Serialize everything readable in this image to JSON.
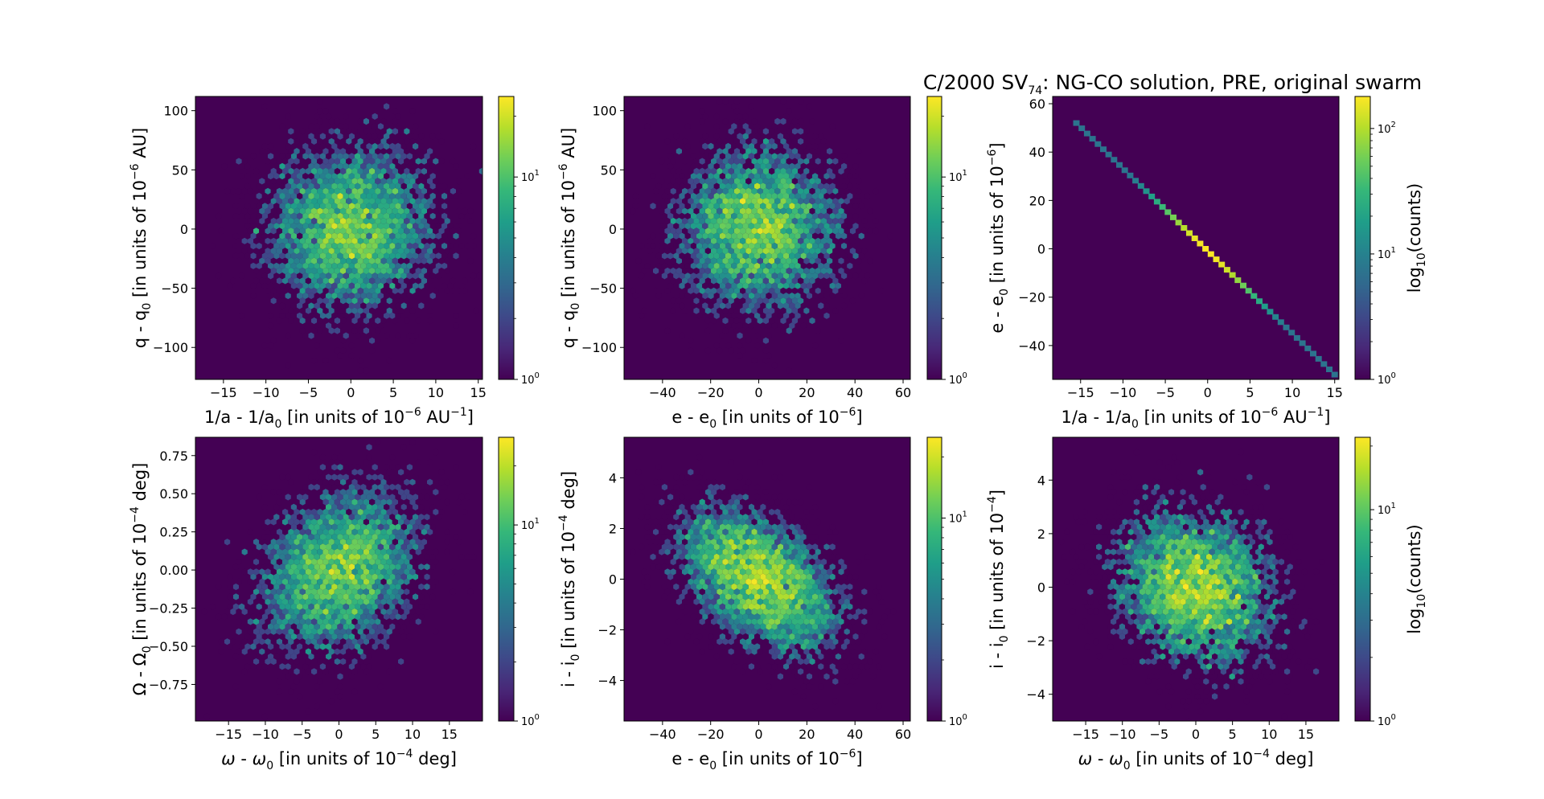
{
  "figure": {
    "title": {
      "prefix": "C/2000 SV",
      "sub": "74",
      "suffix": ": NG-CO solution, PRE, original swarm"
    }
  },
  "colors": {
    "viridis": [
      "#440154",
      "#482878",
      "#3e4989",
      "#31688e",
      "#26828e",
      "#1f9e89",
      "#35b779",
      "#6ece58",
      "#b5de2b",
      "#fde725"
    ],
    "background": "#440154"
  },
  "chart_data": [
    {
      "id": "p1",
      "type": "heatmap",
      "kind": "hexbin",
      "x": {
        "range": [
          -18.3,
          15.5
        ],
        "ticks": [
          -15,
          -10,
          -5,
          0,
          5,
          10,
          15
        ],
        "tick_labels": [
          "−15",
          "−10",
          "−5",
          "0",
          "5",
          "10",
          "15"
        ],
        "label": {
          "parts": [
            [
              "t",
              "1/a - 1/a"
            ],
            [
              "sub",
              "0"
            ],
            [
              "t",
              " [in units of 10"
            ],
            [
              "sup",
              "−6"
            ],
            [
              "t",
              " AU"
            ],
            [
              "sup",
              "−1"
            ],
            [
              "t",
              "]"
            ]
          ]
        }
      },
      "y": {
        "range": [
          -127,
          112
        ],
        "ticks": [
          100,
          50,
          0,
          -50,
          -100
        ],
        "tick_labels": [
          "100",
          "50",
          "0",
          "−50",
          "−100"
        ],
        "label": {
          "parts": [
            [
              "t",
              "q - q"
            ],
            [
              "sub",
              "0"
            ],
            [
              "t",
              " [in units of 10"
            ],
            [
              "sup",
              "−6"
            ],
            [
              "t",
              " AU]"
            ]
          ]
        }
      },
      "density": {
        "shape": "gaussian-blob",
        "mean": [
          0,
          0
        ],
        "sigma": [
          5,
          35
        ],
        "rho": 0,
        "n_points": 5000
      },
      "colorbar": {
        "scale": "log",
        "range": [
          1,
          25
        ],
        "ticks": [
          1,
          10
        ],
        "tick_labels": [
          [
            "10",
            "0"
          ],
          [
            "10",
            "1"
          ]
        ],
        "label": null
      }
    },
    {
      "id": "p2",
      "type": "heatmap",
      "kind": "hexbin",
      "x": {
        "range": [
          -56,
          63
        ],
        "ticks": [
          -40,
          -20,
          0,
          20,
          40,
          60
        ],
        "tick_labels": [
          "−40",
          "−20",
          "0",
          "20",
          "40",
          "60"
        ],
        "label": {
          "parts": [
            [
              "t",
              "e - e"
            ],
            [
              "sub",
              "0"
            ],
            [
              "t",
              " [in units of 10"
            ],
            [
              "sup",
              "−6"
            ],
            [
              "t",
              "]"
            ]
          ]
        }
      },
      "y": {
        "range": [
          -127,
          112
        ],
        "ticks": [
          100,
          50,
          0,
          -50,
          -100
        ],
        "tick_labels": [
          "100",
          "50",
          "0",
          "−50",
          "−100"
        ],
        "label": {
          "parts": [
            [
              "t",
              "q - q"
            ],
            [
              "sub",
              "0"
            ],
            [
              "t",
              " [in units of 10"
            ],
            [
              "sup",
              "−6"
            ],
            [
              "t",
              " AU]"
            ]
          ]
        }
      },
      "density": {
        "shape": "gaussian-blob",
        "mean": [
          0,
          0
        ],
        "sigma": [
          17,
          35
        ],
        "rho": 0,
        "n_points": 5000
      },
      "colorbar": {
        "scale": "log",
        "range": [
          1,
          25
        ],
        "ticks": [
          1,
          10
        ],
        "tick_labels": [
          [
            "10",
            "0"
          ],
          [
            "10",
            "1"
          ]
        ],
        "label": null
      }
    },
    {
      "id": "p3",
      "type": "heatmap",
      "kind": "hexbin",
      "x": {
        "range": [
          -18.3,
          15.5
        ],
        "ticks": [
          -15,
          -10,
          -5,
          0,
          5,
          10,
          15
        ],
        "tick_labels": [
          "−15",
          "−10",
          "−5",
          "0",
          "5",
          "10",
          "15"
        ],
        "label": {
          "parts": [
            [
              "t",
              "1/a - 1/a"
            ],
            [
              "sub",
              "0"
            ],
            [
              "t",
              " [in units of 10"
            ],
            [
              "sup",
              "−6"
            ],
            [
              "t",
              " AU"
            ],
            [
              "sup",
              "−1"
            ],
            [
              "t",
              "]"
            ]
          ]
        }
      },
      "y": {
        "range": [
          -54,
          63
        ],
        "ticks": [
          60,
          40,
          20,
          0,
          -20,
          -40
        ],
        "tick_labels": [
          "60",
          "40",
          "20",
          "0",
          "−20",
          "−40"
        ],
        "label": {
          "parts": [
            [
              "t",
              "e - e"
            ],
            [
              "sub",
              "0"
            ],
            [
              "t",
              " [in units of 10"
            ],
            [
              "sup",
              "−6"
            ],
            [
              "t",
              "]"
            ]
          ]
        }
      },
      "density": {
        "shape": "linear-ridge",
        "x_range": [
          -15.5,
          15
        ],
        "y_at_x": [
          [
            -15.5,
            52
          ],
          [
            15,
            -52
          ]
        ],
        "sigma_along": 5
      },
      "colorbar": {
        "scale": "log",
        "range": [
          1,
          180
        ],
        "ticks": [
          1,
          10,
          100
        ],
        "tick_labels": [
          [
            "10",
            "0"
          ],
          [
            "10",
            "1"
          ],
          [
            "10",
            "2"
          ]
        ],
        "label": {
          "parts": [
            [
              "t",
              "log"
            ],
            [
              "sub",
              "10"
            ],
            [
              "t",
              "(counts)"
            ]
          ]
        }
      }
    },
    {
      "id": "p4",
      "type": "heatmap",
      "kind": "hexbin",
      "x": {
        "range": [
          -19.5,
          19.5
        ],
        "ticks": [
          -15,
          -10,
          -5,
          0,
          5,
          10,
          15
        ],
        "tick_labels": [
          "−15",
          "−10",
          "−5",
          "0",
          "5",
          "10",
          "15"
        ],
        "label": {
          "parts": [
            [
              "ti",
              "ω"
            ],
            [
              "t",
              " - "
            ],
            [
              "ti",
              "ω"
            ],
            [
              "sub",
              "0"
            ],
            [
              "t",
              " [in units of 10"
            ],
            [
              "sup",
              "−4"
            ],
            [
              "t",
              " deg]"
            ]
          ]
        }
      },
      "y": {
        "range": [
          -0.99,
          0.87
        ],
        "ticks": [
          0.75,
          0.5,
          0.25,
          0,
          -0.25,
          -0.5,
          -0.75
        ],
        "tick_labels": [
          "0.75",
          "0.50",
          "0.25",
          "0.00",
          "−0.25",
          "−0.50",
          "−0.75"
        ],
        "label": {
          "parts": [
            [
              "t",
              "Ω - Ω"
            ],
            [
              "sub",
              "0"
            ],
            [
              "t",
              " [in units of 10"
            ],
            [
              "sup",
              "−4"
            ],
            [
              "t",
              " deg]"
            ]
          ]
        }
      },
      "density": {
        "shape": "gaussian-blob",
        "mean": [
          0,
          0
        ],
        "sigma": [
          5.5,
          0.27
        ],
        "rho": 0.3,
        "n_points": 5000
      },
      "colorbar": {
        "scale": "log",
        "range": [
          1,
          28
        ],
        "ticks": [
          1,
          10
        ],
        "tick_labels": [
          [
            "10",
            "0"
          ],
          [
            "10",
            "1"
          ]
        ],
        "label": null
      }
    },
    {
      "id": "p5",
      "type": "heatmap",
      "kind": "hexbin",
      "x": {
        "range": [
          -56,
          63
        ],
        "ticks": [
          -40,
          -20,
          0,
          20,
          40,
          60
        ],
        "tick_labels": [
          "−40",
          "−20",
          "0",
          "20",
          "40",
          "60"
        ],
        "label": {
          "parts": [
            [
              "t",
              "e - e"
            ],
            [
              "sub",
              "0"
            ],
            [
              "t",
              " [in units of 10"
            ],
            [
              "sup",
              "−6"
            ],
            [
              "t",
              "]"
            ]
          ]
        }
      },
      "y": {
        "range": [
          -5.6,
          5.6
        ],
        "ticks": [
          4,
          2,
          0,
          -2,
          -4
        ],
        "tick_labels": [
          "4",
          "2",
          "0",
          "−2",
          "−4"
        ],
        "label": {
          "parts": [
            [
              "t",
              "i - i"
            ],
            [
              "sub",
              "0"
            ],
            [
              "t",
              " [in units of 10"
            ],
            [
              "sup",
              "−4"
            ],
            [
              "t",
              " deg]"
            ]
          ]
        }
      },
      "density": {
        "shape": "gaussian-blob",
        "mean": [
          0,
          0
        ],
        "sigma": [
          17,
          1.45
        ],
        "rho": -0.45,
        "n_points": 5000
      },
      "colorbar": {
        "scale": "log",
        "range": [
          1,
          25
        ],
        "ticks": [
          1,
          10
        ],
        "tick_labels": [
          [
            "10",
            "0"
          ],
          [
            "10",
            "1"
          ]
        ],
        "label": null
      }
    },
    {
      "id": "p6",
      "type": "heatmap",
      "kind": "hexbin",
      "x": {
        "range": [
          -19.5,
          19.5
        ],
        "ticks": [
          -15,
          -10,
          -5,
          0,
          5,
          10,
          15
        ],
        "tick_labels": [
          "−15",
          "−10",
          "−5",
          "0",
          "5",
          "10",
          "15"
        ],
        "label": {
          "parts": [
            [
              "ti",
              "ω"
            ],
            [
              "t",
              " - "
            ],
            [
              "ti",
              "ω"
            ],
            [
              "sub",
              "0"
            ],
            [
              "t",
              " [in units of 10"
            ],
            [
              "sup",
              "−4"
            ],
            [
              "t",
              " deg]"
            ]
          ]
        }
      },
      "y": {
        "range": [
          -5.0,
          5.6
        ],
        "ticks": [
          4,
          2,
          0,
          -2,
          -4
        ],
        "tick_labels": [
          "4",
          "2",
          "0",
          "−2",
          "−4"
        ],
        "label": {
          "parts": [
            [
              "t",
              "i - i"
            ],
            [
              "sub",
              "0"
            ],
            [
              "t",
              " [in units of 10"
            ],
            [
              "sup",
              "−4"
            ],
            [
              "t",
              "]"
            ]
          ]
        }
      },
      "density": {
        "shape": "gaussian-blob",
        "mean": [
          0,
          0
        ],
        "sigma": [
          5.5,
          1.45
        ],
        "rho": -0.15,
        "n_points": 5000
      },
      "colorbar": {
        "scale": "log",
        "range": [
          1,
          22
        ],
        "ticks": [
          1,
          10
        ],
        "tick_labels": [
          [
            "10",
            "0"
          ],
          [
            "10",
            "1"
          ]
        ],
        "label": {
          "parts": [
            [
              "t",
              "log"
            ],
            [
              "sub",
              "10"
            ],
            [
              "t",
              "(counts)"
            ]
          ]
        }
      }
    }
  ]
}
